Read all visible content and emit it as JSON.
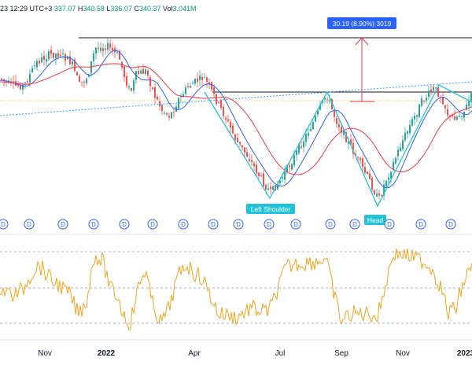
{
  "header": {
    "time_fragment": "23 12:29 UTC+3",
    "open_value": "337.07",
    "high_label": "H",
    "high_value": "340.58",
    "low_label": "L",
    "low_value": "336.07",
    "close_label": "C",
    "close_value": "340.37",
    "vol_label": "Vol",
    "vol_value": "3.041M"
  },
  "annotations": {
    "measure_label": "30.19 (8.90%) 3019",
    "left_shoulder": "Left Shoulder",
    "head": "Head"
  },
  "event_marker_letter": "D",
  "x_axis": {
    "ticks": [
      "Nov",
      "2022",
      "Apr",
      "Jul",
      "Sep",
      "Nov",
      "2023"
    ]
  },
  "colors": {
    "up": "#26a69a",
    "down": "#ef5350",
    "ma_blue": "#2962ff",
    "ma_red": "#f23645",
    "pattern_line": "#22c3d8",
    "oscillator": "#f7a21b",
    "measure_box": "#2962ff",
    "measure_arrow": "#f23645",
    "event_circle": "#2962ff"
  },
  "icons": {
    "event_marker": "dividend-circle-icon"
  }
}
